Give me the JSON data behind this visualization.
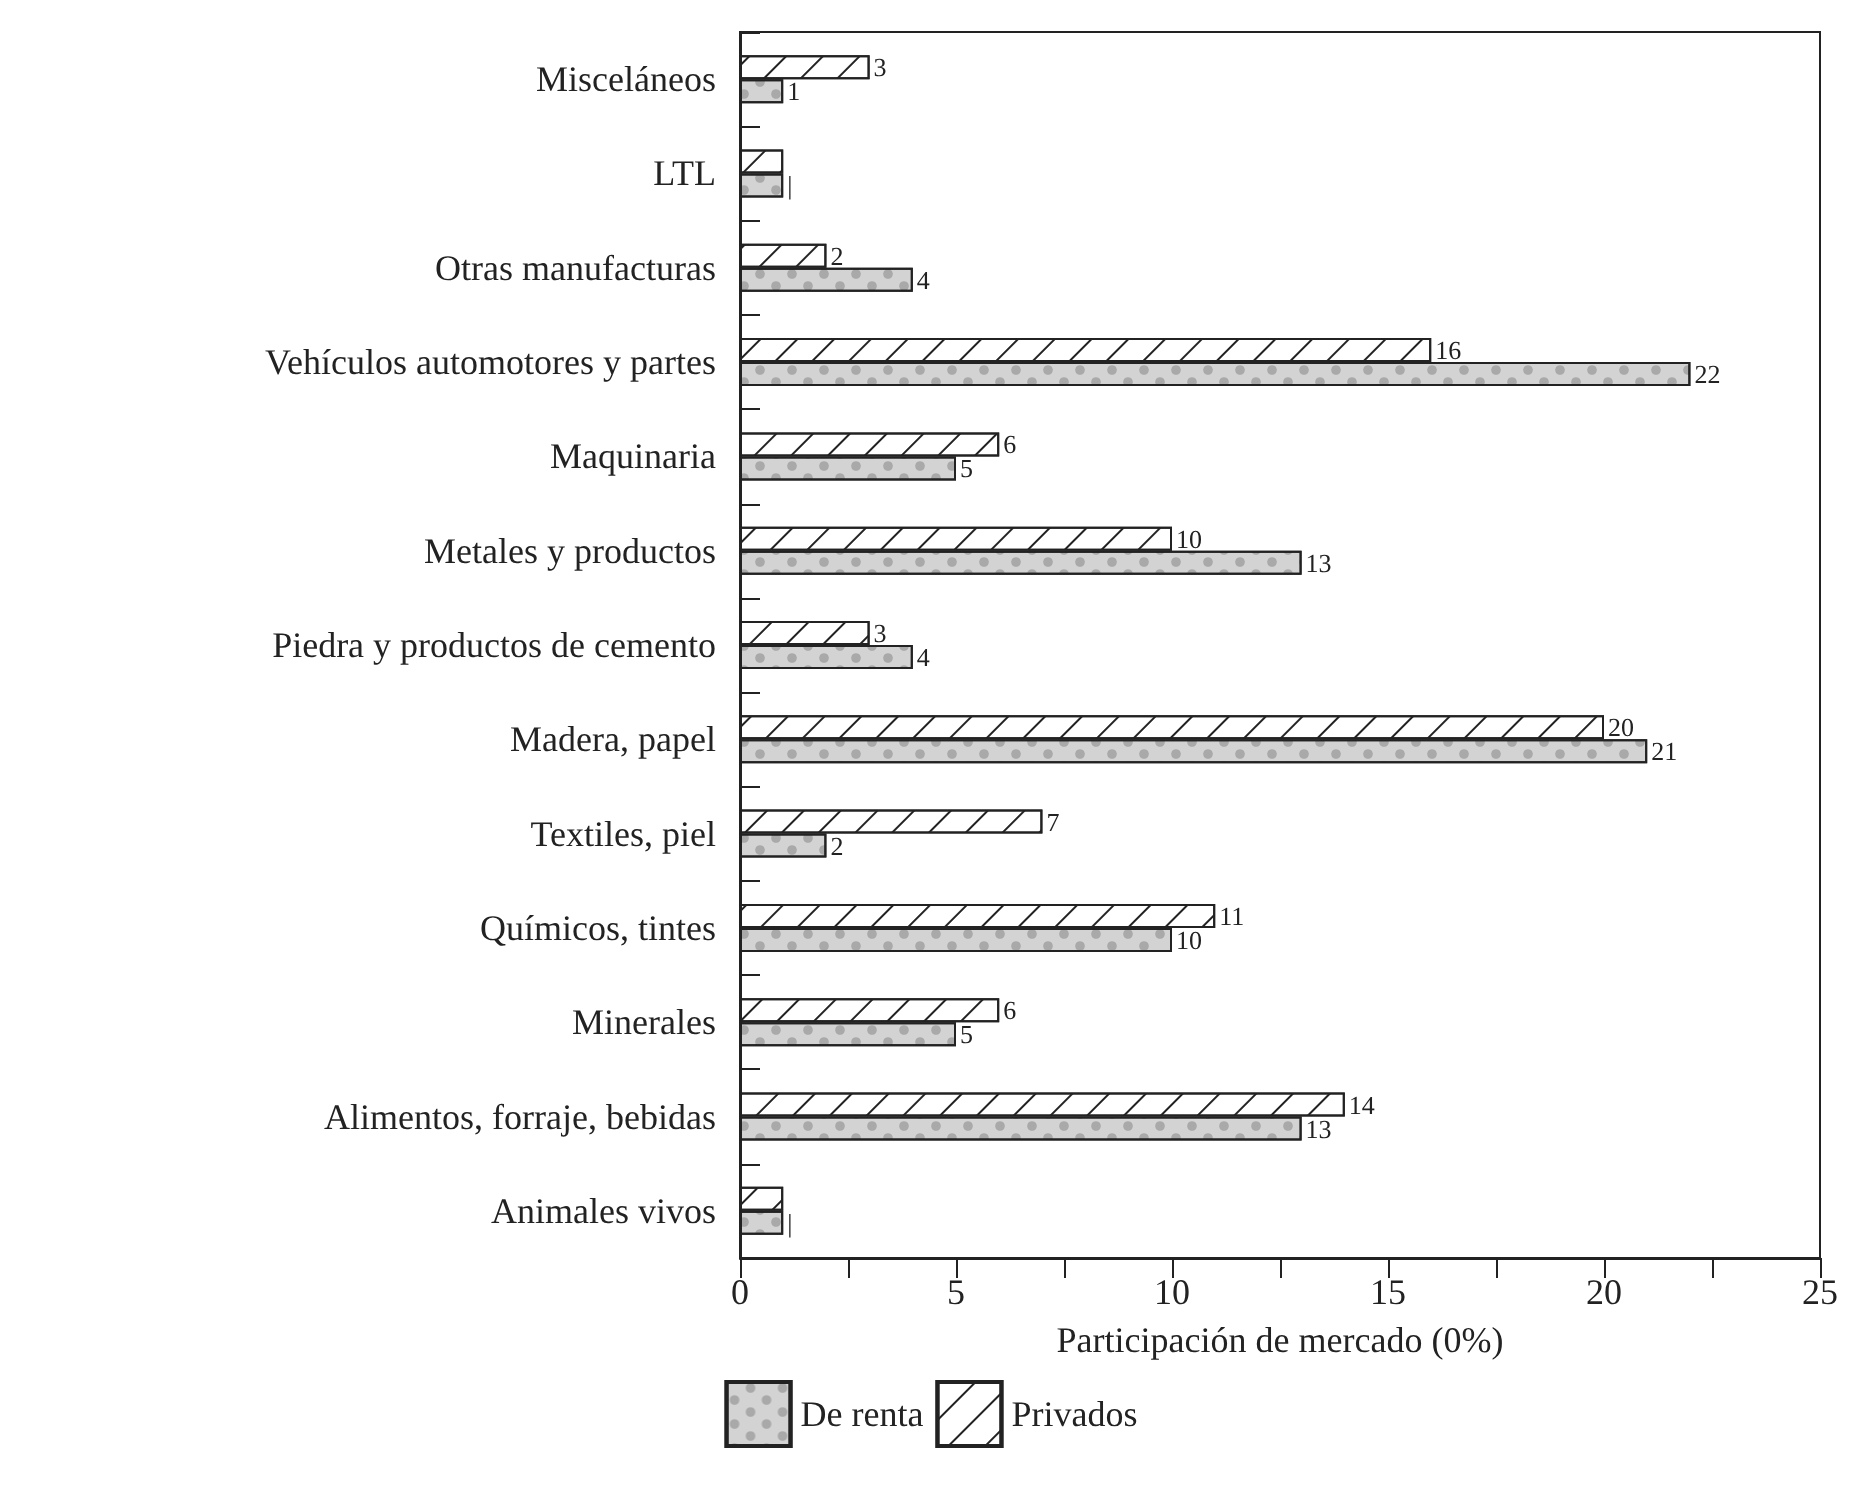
{
  "chart_data": {
    "type": "bar",
    "orientation": "horizontal",
    "xlabel": "Participación de mercado (0%)",
    "categories": [
      "Misceláneos",
      "LTL",
      "Otras manufacturas",
      "Vehículos automotores y partes",
      "Maquinaria",
      "Metales y productos",
      "Piedra y productos de cemento",
      "Madera, papel",
      "Textiles, piel",
      "Químicos, tintes",
      "Minerales",
      "Alimentos, forraje, bebidas",
      "Animales vivos"
    ],
    "series": [
      {
        "name": "De renta",
        "color": "#d3d3d3",
        "values": [
          1,
          1,
          4,
          22,
          5,
          13,
          4,
          21,
          2,
          10,
          5,
          13,
          1
        ],
        "value_labels": [
          "1",
          "|",
          "4",
          "22",
          "5",
          "13",
          "4",
          "21",
          "2",
          "10",
          "5",
          "13",
          "|"
        ]
      },
      {
        "name": "Privados",
        "color": "#ffffff",
        "values": [
          3,
          1,
          2,
          16,
          6,
          10,
          3,
          20,
          7,
          11,
          6,
          14,
          1
        ],
        "value_labels": [
          "3",
          null,
          "2",
          "16",
          "6",
          "10",
          "3",
          "20",
          "7",
          "11",
          "6",
          "14",
          null
        ]
      }
    ],
    "xlim": [
      0,
      25
    ],
    "xticks": [
      0,
      {
        "value": 2.5,
        "label": null
      },
      5,
      {
        "value": 7.5,
        "label": null
      },
      10,
      {
        "value": 12.5,
        "label": null
      },
      15,
      {
        "value": 17.5,
        "label": null
      },
      20,
      {
        "value": 22.5,
        "label": null
      },
      25
    ],
    "grid": false,
    "legend": "bottom"
  }
}
